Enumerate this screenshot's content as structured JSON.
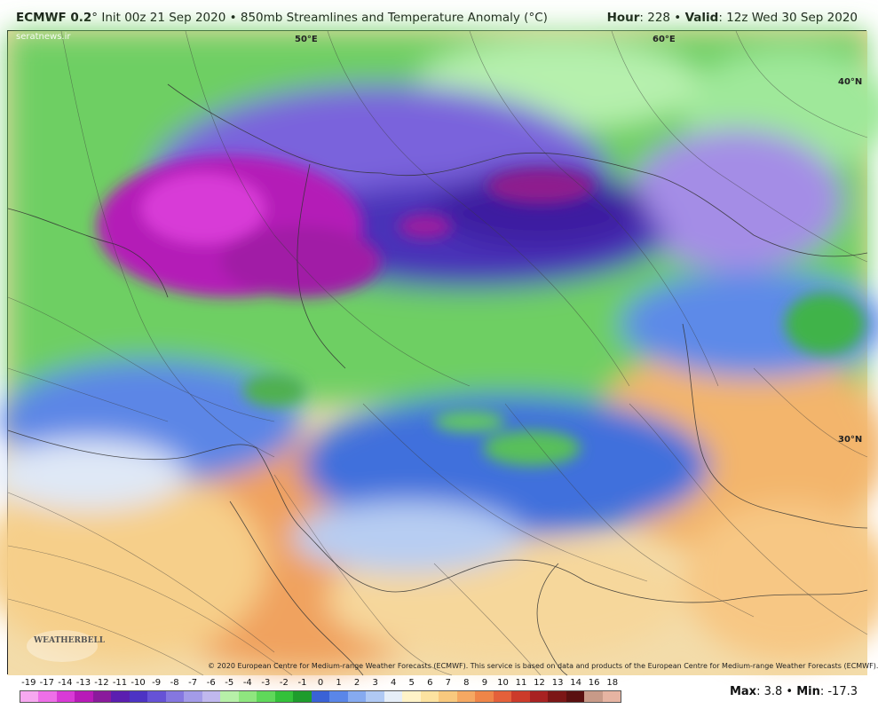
{
  "header": {
    "model": "ECMWF 0.2",
    "degree": "°",
    "init_text": " Init 00z 21 Sep 2020 • 850mb Streamlines and Temperature Anomaly (°C)",
    "hour_label": "Hour",
    "hour_value": ": 228 • ",
    "valid_label": "Valid",
    "valid_value": ": 12z Wed 30 Sep 2020"
  },
  "watermark": "seratnews.ir",
  "map_labels": {
    "lon_50": "50°E",
    "lon_60": "60°E",
    "lat_40": "40°N",
    "lat_30": "30°N"
  },
  "logo": "WEATHERBELL",
  "credit": "© 2020 European Centre for Medium-range Weather Forecasts (ECMWF). This service is based on data and products of the European Centre for Medium-range Weather Forecasts (ECMWF).",
  "colorbar": {
    "ticks": [
      "-19",
      "-17",
      "-14",
      "-13",
      "-12",
      "-11",
      "-10",
      "-9",
      "-8",
      "-7",
      "-6",
      "-5",
      "-4",
      "-3",
      "-2",
      "-1",
      "0",
      "1",
      "2",
      "3",
      "4",
      "5",
      "6",
      "7",
      "8",
      "9",
      "10",
      "11",
      "12",
      "13",
      "14",
      "16",
      "18"
    ],
    "colors": [
      "#f7a8f0",
      "#ee6fe8",
      "#d93ad6",
      "#b81ab8",
      "#8a1a9c",
      "#5b1eb0",
      "#4d33c4",
      "#6652d6",
      "#8577e0",
      "#a39be8",
      "#c0b8ee",
      "#b7f0a8",
      "#8fe67f",
      "#5fd85a",
      "#33c13a",
      "#1e9c2c",
      "#3a62d6",
      "#5a86e8",
      "#86aaf0",
      "#b0c9f4",
      "#e6eef8",
      "#fff3c8",
      "#fde3a0",
      "#f9c97e",
      "#f5a862",
      "#ef8548",
      "#e4603a",
      "#cc3b2a",
      "#a82222",
      "#7c1616",
      "#5a1010",
      "#c89a88",
      "#e6b4a2"
    ]
  },
  "stats": {
    "max_label": "Max",
    "max_value": ": 3.8 • ",
    "min_label": "Min",
    "min_value": ": -17.3"
  }
}
